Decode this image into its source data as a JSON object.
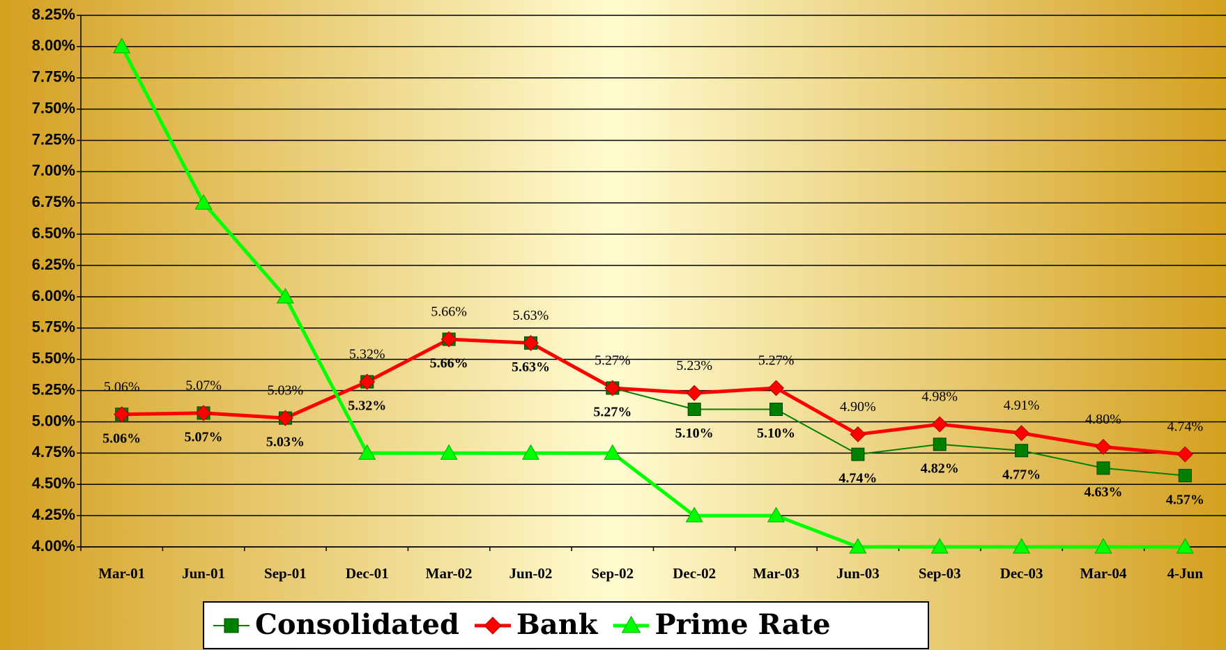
{
  "chart_data": {
    "type": "line",
    "categories": [
      "Mar-01",
      "Jun-01",
      "Sep-01",
      "Dec-01",
      "Mar-02",
      "Jun-02",
      "Sep-02",
      "Dec-02",
      "Mar-03",
      "Jun-03",
      "Sep-03",
      "Dec-03",
      "Mar-04",
      "4-Jun"
    ],
    "series": [
      {
        "name": "Consolidated",
        "color": "#008000",
        "marker": "square",
        "label_position": "below",
        "values": [
          5.06,
          5.07,
          5.03,
          5.32,
          5.66,
          5.63,
          5.27,
          5.1,
          5.1,
          4.74,
          4.82,
          4.77,
          4.63,
          4.57
        ],
        "value_labels": [
          "5.06%",
          "5.07%",
          "5.03%",
          "5.32%",
          "5.66%",
          "5.63%",
          "5.27%",
          "5.10%",
          "5.10%",
          "4.74%",
          "4.82%",
          "4.77%",
          "4.63%",
          "4.57%"
        ]
      },
      {
        "name": "Bank",
        "color": "#ff0000",
        "marker": "diamond",
        "label_position": "above",
        "values": [
          5.06,
          5.07,
          5.03,
          5.32,
          5.66,
          5.63,
          5.27,
          5.23,
          5.27,
          4.9,
          4.98,
          4.91,
          4.8,
          4.74
        ],
        "value_labels": [
          "5.06%",
          "5.07%",
          "5.03%",
          "5.32%",
          "5.66%",
          "5.63%",
          "5.27%",
          "5.23%",
          "5.27%",
          "4.90%",
          "4.98%",
          "4.91%",
          "4.80%",
          "4.74%"
        ]
      },
      {
        "name": "Prime Rate",
        "color": "#00ff00",
        "marker": "triangle",
        "values": [
          8.0,
          6.75,
          6.0,
          4.75,
          4.75,
          4.75,
          4.75,
          4.25,
          4.25,
          4.0,
          4.0,
          4.0,
          4.0,
          4.0
        ]
      }
    ],
    "ylim": [
      4.0,
      8.25
    ],
    "yticks": [
      {
        "value": 4.0,
        "label": "4.00%"
      },
      {
        "value": 4.25,
        "label": "4.25%"
      },
      {
        "value": 4.5,
        "label": "4.50%"
      },
      {
        "value": 4.75,
        "label": "4.75%"
      },
      {
        "value": 5.0,
        "label": "5.00%"
      },
      {
        "value": 5.25,
        "label": "5.25%"
      },
      {
        "value": 5.5,
        "label": "5.50%"
      },
      {
        "value": 5.75,
        "label": "5.75%"
      },
      {
        "value": 6.0,
        "label": "6.00%"
      },
      {
        "value": 6.25,
        "label": "6.25%"
      },
      {
        "value": 6.5,
        "label": "6.50%"
      },
      {
        "value": 6.75,
        "label": "6.75%"
      },
      {
        "value": 7.0,
        "label": "7.00%"
      },
      {
        "value": 7.25,
        "label": "7.25%"
      },
      {
        "value": 7.5,
        "label": "7.50%"
      },
      {
        "value": 7.75,
        "label": "7.75%"
      },
      {
        "value": 8.0,
        "label": "8.00%"
      },
      {
        "value": 8.25,
        "label": "8.25%"
      }
    ],
    "grid": true,
    "legend": "bottom"
  }
}
